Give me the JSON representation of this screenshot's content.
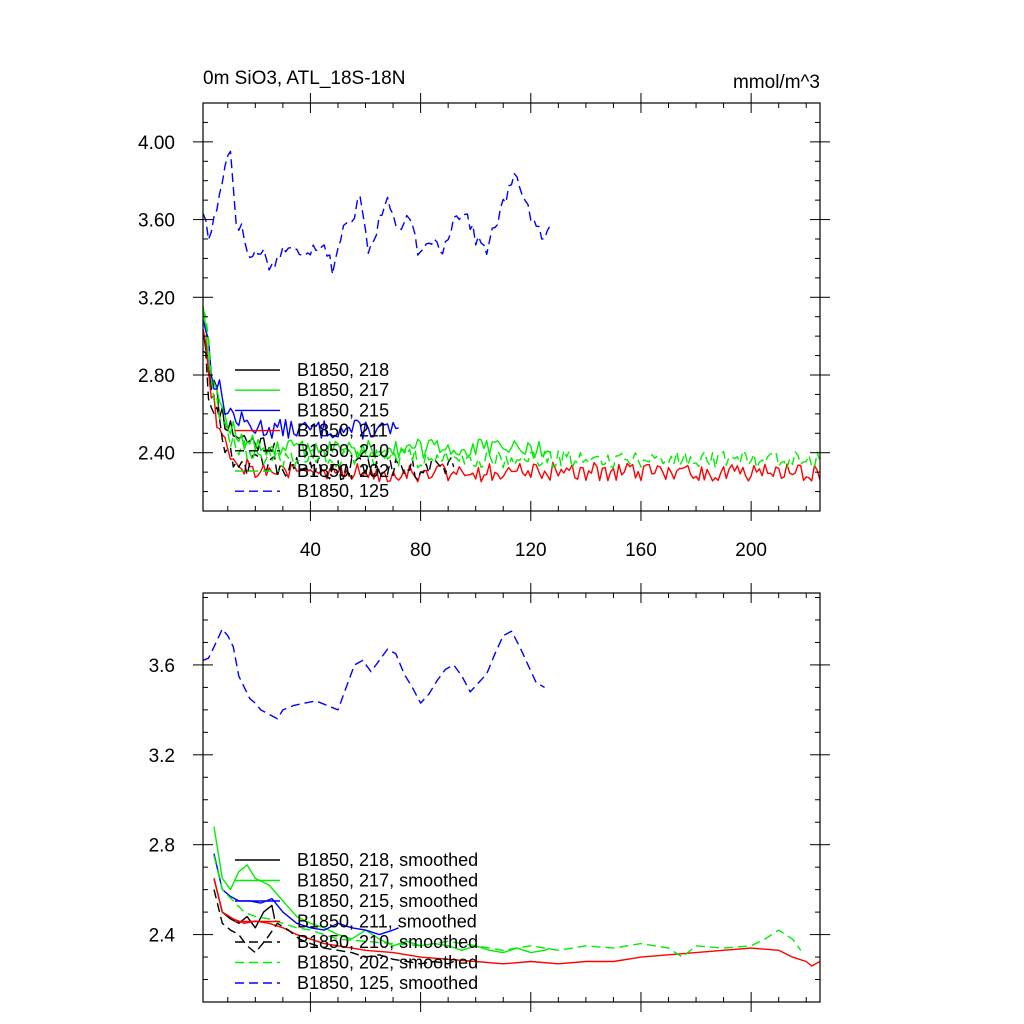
{
  "chart_data": [
    {
      "type": "line",
      "title": "0m SiO3, ATL_18S-18N",
      "units": "mmol/m^3",
      "xlim": [
        1,
        225
      ],
      "ylim": [
        2.1,
        4.2
      ],
      "xticks": [
        40,
        80,
        120,
        160,
        200
      ],
      "xtick_labels": [
        "40",
        "80",
        "120",
        "160",
        "200"
      ],
      "yticks": [
        2.4,
        2.8,
        3.2,
        3.6,
        4.0
      ],
      "ytick_labels": [
        "2.40",
        "2.80",
        "3.20",
        "3.60",
        "4.00"
      ],
      "legend_position": "lower-left",
      "series": [
        {
          "name": "B1850, 218",
          "color": "#000000",
          "dash": "solid",
          "length": 27,
          "start": 3.1,
          "tail": 2.44,
          "noise": 0.05,
          "seed": 11,
          "anchors": []
        },
        {
          "name": "B1850, 217",
          "color": "#00ee00",
          "dash": "solid",
          "length": 127,
          "start": 3.22,
          "tail": 2.42,
          "noise": 0.05,
          "seed": 12,
          "anchors": []
        },
        {
          "name": "B1850, 215",
          "color": "#0000ff",
          "dash": "solid",
          "length": 72,
          "start": 3.15,
          "tail": 2.52,
          "noise": 0.05,
          "seed": 13,
          "anchors": []
        },
        {
          "name": "B1850, 211",
          "color": "#ff0000",
          "dash": "solid",
          "length": 225,
          "start": 3.1,
          "tail": 2.3,
          "noise": 0.05,
          "seed": 14,
          "anchors": []
        },
        {
          "name": "B1850, 210",
          "color": "#000000",
          "dash": "dashed",
          "length": 92,
          "start": 3.0,
          "tail": 2.32,
          "noise": 0.06,
          "seed": 15,
          "anchors": []
        },
        {
          "name": "B1850, 202",
          "color": "#00ee00",
          "dash": "dashed",
          "length": 225,
          "start": 3.2,
          "tail": 2.37,
          "noise": 0.05,
          "seed": 16,
          "anchors": []
        },
        {
          "name": "B1850, 125",
          "color": "#0000ff",
          "dash": "dashed",
          "length": 127,
          "start": 3.65,
          "tail": 3.5,
          "noise": 0.07,
          "seed": 17,
          "anchors": [
            [
              1,
              3.65
            ],
            [
              3,
              3.5
            ],
            [
              5,
              3.6
            ],
            [
              7,
              3.72
            ],
            [
              9,
              3.9
            ],
            [
              11,
              3.95
            ],
            [
              13,
              3.6
            ],
            [
              15,
              3.55
            ],
            [
              18,
              3.4
            ],
            [
              22,
              3.45
            ],
            [
              26,
              3.35
            ],
            [
              30,
              3.45
            ],
            [
              35,
              3.43
            ],
            [
              40,
              3.45
            ],
            [
              45,
              3.48
            ],
            [
              48,
              3.35
            ],
            [
              52,
              3.55
            ],
            [
              56,
              3.6
            ],
            [
              58,
              3.75
            ],
            [
              61,
              3.45
            ],
            [
              64,
              3.55
            ],
            [
              68,
              3.7
            ],
            [
              72,
              3.55
            ],
            [
              76,
              3.6
            ],
            [
              80,
              3.4
            ],
            [
              84,
              3.5
            ],
            [
              88,
              3.45
            ],
            [
              92,
              3.6
            ],
            [
              96,
              3.65
            ],
            [
              100,
              3.5
            ],
            [
              104,
              3.45
            ],
            [
              108,
              3.6
            ],
            [
              112,
              3.75
            ],
            [
              115,
              3.83
            ],
            [
              118,
              3.7
            ],
            [
              122,
              3.55
            ],
            [
              125,
              3.5
            ],
            [
              127,
              3.55
            ]
          ]
        }
      ]
    },
    {
      "type": "line",
      "title": "",
      "xlim": [
        1,
        225
      ],
      "ylim": [
        2.1,
        3.92
      ],
      "xticks": [
        40,
        80,
        120,
        160,
        200
      ],
      "xtick_labels": [],
      "yticks": [
        2.4,
        2.8,
        3.2,
        3.6
      ],
      "ytick_labels": [
        "2.4",
        "2.8",
        "3.2",
        "3.6"
      ],
      "legend_position": "lower-left",
      "series": [
        {
          "name": "B1850, 218, smoothed",
          "color": "#000000",
          "dash": "solid",
          "length": 27,
          "points": [
            [
              5,
              2.65
            ],
            [
              8,
              2.5
            ],
            [
              11,
              2.47
            ],
            [
              14,
              2.45
            ],
            [
              17,
              2.48
            ],
            [
              20,
              2.43
            ],
            [
              23,
              2.5
            ],
            [
              26,
              2.53
            ],
            [
              27,
              2.47
            ]
          ]
        },
        {
          "name": "B1850, 217, smoothed",
          "color": "#00ee00",
          "dash": "solid",
          "length": 127,
          "points": [
            [
              5,
              2.88
            ],
            [
              8,
              2.65
            ],
            [
              11,
              2.6
            ],
            [
              14,
              2.68
            ],
            [
              17,
              2.71
            ],
            [
              20,
              2.65
            ],
            [
              25,
              2.62
            ],
            [
              30,
              2.55
            ],
            [
              35,
              2.48
            ],
            [
              40,
              2.45
            ],
            [
              45,
              2.43
            ],
            [
              50,
              2.4
            ],
            [
              55,
              2.38
            ],
            [
              60,
              2.42
            ],
            [
              65,
              2.38
            ],
            [
              70,
              2.35
            ],
            [
              75,
              2.37
            ],
            [
              80,
              2.35
            ],
            [
              85,
              2.36
            ],
            [
              90,
              2.35
            ],
            [
              95,
              2.33
            ],
            [
              100,
              2.35
            ],
            [
              105,
              2.33
            ],
            [
              110,
              2.32
            ],
            [
              115,
              2.34
            ],
            [
              120,
              2.32
            ],
            [
              125,
              2.33
            ],
            [
              127,
              2.34
            ]
          ]
        },
        {
          "name": "B1850, 215, smoothed",
          "color": "#0000ff",
          "dash": "solid",
          "length": 72,
          "points": [
            [
              5,
              2.76
            ],
            [
              8,
              2.6
            ],
            [
              11,
              2.57
            ],
            [
              14,
              2.55
            ],
            [
              18,
              2.55
            ],
            [
              22,
              2.54
            ],
            [
              26,
              2.56
            ],
            [
              30,
              2.5
            ],
            [
              35,
              2.45
            ],
            [
              40,
              2.43
            ],
            [
              45,
              2.42
            ],
            [
              50,
              2.45
            ],
            [
              55,
              2.43
            ],
            [
              60,
              2.42
            ],
            [
              65,
              2.4
            ],
            [
              70,
              2.42
            ],
            [
              72,
              2.43
            ]
          ]
        },
        {
          "name": "B1850, 211, smoothed",
          "color": "#ff0000",
          "dash": "solid",
          "length": 225,
          "points": [
            [
              5,
              2.65
            ],
            [
              8,
              2.5
            ],
            [
              12,
              2.47
            ],
            [
              16,
              2.45
            ],
            [
              20,
              2.46
            ],
            [
              25,
              2.45
            ],
            [
              30,
              2.43
            ],
            [
              35,
              2.4
            ],
            [
              40,
              2.38
            ],
            [
              45,
              2.36
            ],
            [
              50,
              2.35
            ],
            [
              60,
              2.33
            ],
            [
              70,
              2.32
            ],
            [
              80,
              2.3
            ],
            [
              90,
              2.29
            ],
            [
              100,
              2.28
            ],
            [
              110,
              2.27
            ],
            [
              120,
              2.28
            ],
            [
              130,
              2.27
            ],
            [
              140,
              2.28
            ],
            [
              150,
              2.28
            ],
            [
              160,
              2.3
            ],
            [
              170,
              2.31
            ],
            [
              180,
              2.32
            ],
            [
              190,
              2.33
            ],
            [
              200,
              2.34
            ],
            [
              210,
              2.33
            ],
            [
              215,
              2.3
            ],
            [
              220,
              2.28
            ],
            [
              222,
              2.26
            ],
            [
              225,
              2.28
            ]
          ]
        },
        {
          "name": "B1850, 210, smoothed",
          "color": "#000000",
          "dash": "dashed",
          "length": 92,
          "points": [
            [
              5,
              2.6
            ],
            [
              8,
              2.45
            ],
            [
              11,
              2.42
            ],
            [
              14,
              2.4
            ],
            [
              17,
              2.35
            ],
            [
              20,
              2.32
            ],
            [
              24,
              2.38
            ],
            [
              28,
              2.45
            ],
            [
              32,
              2.42
            ],
            [
              36,
              2.38
            ],
            [
              40,
              2.36
            ],
            [
              45,
              2.34
            ],
            [
              50,
              2.33
            ],
            [
              55,
              2.32
            ],
            [
              60,
              2.3
            ],
            [
              65,
              2.31
            ],
            [
              70,
              2.29
            ],
            [
              75,
              2.28
            ],
            [
              80,
              2.27
            ],
            [
              85,
              2.28
            ],
            [
              90,
              2.27
            ],
            [
              92,
              2.28
            ]
          ]
        },
        {
          "name": "B1850, 202, smoothed",
          "color": "#00ee00",
          "dash": "dashed",
          "length": 225,
          "points": [
            [
              5,
              2.75
            ],
            [
              8,
              2.6
            ],
            [
              12,
              2.55
            ],
            [
              16,
              2.5
            ],
            [
              20,
              2.48
            ],
            [
              25,
              2.47
            ],
            [
              30,
              2.45
            ],
            [
              35,
              2.43
            ],
            [
              40,
              2.42
            ],
            [
              45,
              2.4
            ],
            [
              50,
              2.38
            ],
            [
              60,
              2.37
            ],
            [
              70,
              2.36
            ],
            [
              80,
              2.35
            ],
            [
              90,
              2.37
            ],
            [
              100,
              2.35
            ],
            [
              110,
              2.33
            ],
            [
              120,
              2.35
            ],
            [
              130,
              2.33
            ],
            [
              140,
              2.35
            ],
            [
              150,
              2.34
            ],
            [
              160,
              2.36
            ],
            [
              170,
              2.34
            ],
            [
              175,
              2.3
            ],
            [
              180,
              2.35
            ],
            [
              190,
              2.34
            ],
            [
              200,
              2.35
            ],
            [
              205,
              2.38
            ],
            [
              210,
              2.42
            ],
            [
              215,
              2.38
            ],
            [
              218,
              2.33
            ]
          ]
        },
        {
          "name": "B1850, 125, smoothed",
          "color": "#0000ff",
          "dash": "dashed",
          "length": 127,
          "points": [
            [
              1,
              3.62
            ],
            [
              3,
              3.63
            ],
            [
              5,
              3.68
            ],
            [
              8,
              3.76
            ],
            [
              10,
              3.73
            ],
            [
              12,
              3.68
            ],
            [
              14,
              3.55
            ],
            [
              16,
              3.5
            ],
            [
              18,
              3.45
            ],
            [
              20,
              3.43
            ],
            [
              22,
              3.4
            ],
            [
              25,
              3.38
            ],
            [
              28,
              3.36
            ],
            [
              30,
              3.4
            ],
            [
              34,
              3.42
            ],
            [
              38,
              3.43
            ],
            [
              42,
              3.44
            ],
            [
              46,
              3.42
            ],
            [
              50,
              3.4
            ],
            [
              53,
              3.5
            ],
            [
              56,
              3.6
            ],
            [
              59,
              3.62
            ],
            [
              62,
              3.57
            ],
            [
              65,
              3.62
            ],
            [
              68,
              3.67
            ],
            [
              71,
              3.65
            ],
            [
              74,
              3.56
            ],
            [
              77,
              3.5
            ],
            [
              80,
              3.43
            ],
            [
              83,
              3.47
            ],
            [
              86,
              3.53
            ],
            [
              89,
              3.58
            ],
            [
              92,
              3.6
            ],
            [
              95,
              3.55
            ],
            [
              98,
              3.48
            ],
            [
              101,
              3.52
            ],
            [
              104,
              3.56
            ],
            [
              107,
              3.65
            ],
            [
              110,
              3.73
            ],
            [
              113,
              3.75
            ],
            [
              116,
              3.68
            ],
            [
              119,
              3.6
            ],
            [
              122,
              3.52
            ],
            [
              125,
              3.5
            ]
          ]
        }
      ]
    }
  ]
}
